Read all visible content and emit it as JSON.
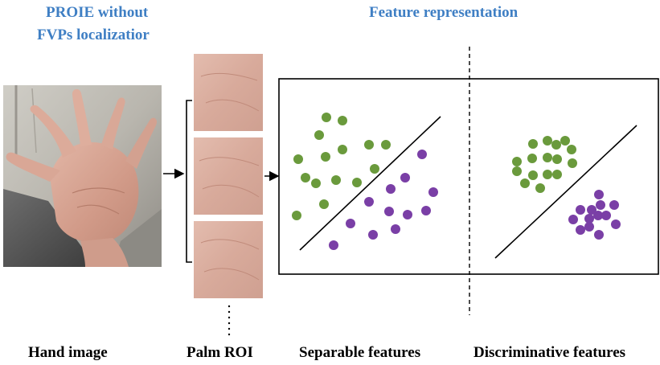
{
  "titles": {
    "proie_line1": "PROIE without",
    "proie_line2": "FVPs localizatior",
    "feature": "Feature representation"
  },
  "captions": {
    "hand": "Hand image",
    "palm": "Palm ROI",
    "separable": "Separable features",
    "discriminative": "Discriminative features"
  },
  "colors": {
    "title_blue": "#3f7fc4",
    "green_dot": "#6a9a3c",
    "purple_dot": "#7a3fa6",
    "skin": "#d7a898",
    "palm_tile": "#dcb0a2"
  },
  "icons": {
    "hand_photo": "hand-photo-icon",
    "palm_roi": "palm-roi-icon"
  }
}
